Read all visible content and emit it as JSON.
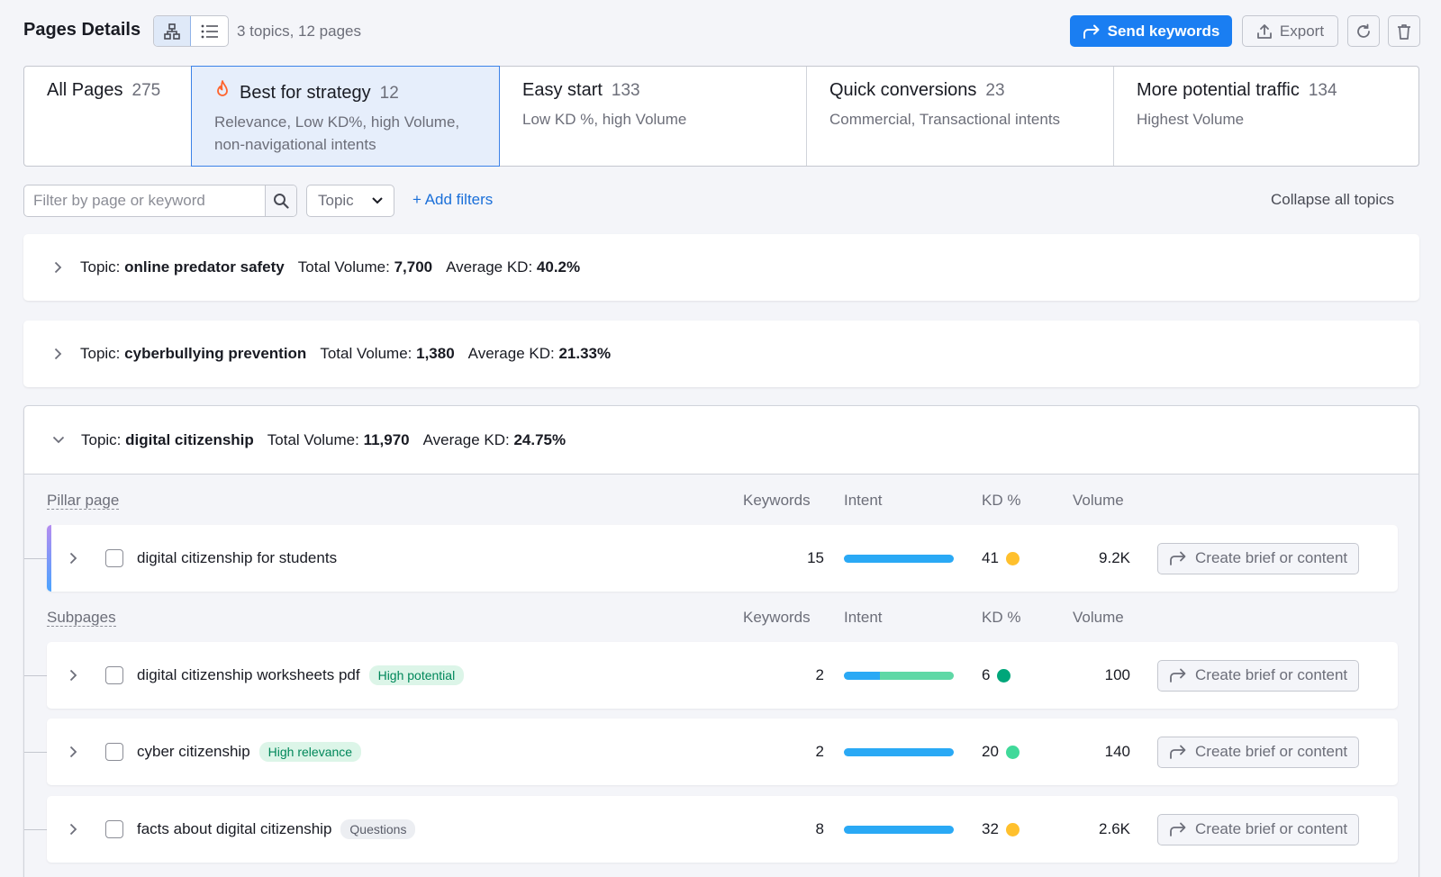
{
  "header": {
    "title": "Pages Details",
    "summary": "3 topics, 12 pages",
    "send_label": "Send keywords",
    "export_label": "Export"
  },
  "tabs": [
    {
      "title": "All Pages",
      "count": "275",
      "desc": ""
    },
    {
      "title": "Best for strategy",
      "count": "12",
      "desc": "Relevance, Low KD%, high Volume, non-navigational intents"
    },
    {
      "title": "Easy start",
      "count": "133",
      "desc": "Low KD %, high Volume"
    },
    {
      "title": "Quick conversions",
      "count": "23",
      "desc": "Commercial, Transactional intents"
    },
    {
      "title": "More potential traffic",
      "count": "134",
      "desc": "Highest Volume"
    }
  ],
  "filters": {
    "placeholder": "Filter by page or keyword",
    "topic_label": "Topic",
    "add_filters": "+ Add filters",
    "collapse": "Collapse all topics"
  },
  "topics": [
    {
      "prefix": "Topic:",
      "name": "online predator safety",
      "vol_label": "Total Volume:",
      "volume": "7,700",
      "kd_label": "Average KD:",
      "kd": "40.2%"
    },
    {
      "prefix": "Topic:",
      "name": "cyberbullying prevention",
      "vol_label": "Total Volume:",
      "volume": "1,380",
      "kd_label": "Average KD:",
      "kd": "21.33%"
    },
    {
      "prefix": "Topic:",
      "name": "digital citizenship",
      "vol_label": "Total Volume:",
      "volume": "11,970",
      "kd_label": "Average KD:",
      "kd": "24.75%"
    }
  ],
  "columns": {
    "keywords": "Keywords",
    "intent": "Intent",
    "kd": "KD %",
    "volume": "Volume"
  },
  "pillar": {
    "label": "Pillar page",
    "row": {
      "name": "digital citizenship for students",
      "keywords": "15",
      "kd": "41",
      "volume": "9.2K",
      "kd_color": "#ffc02d",
      "intent": [
        {
          "color": "#2aa9f5",
          "share": 1.0
        }
      ]
    }
  },
  "subpages": {
    "label": "Subpages",
    "rows": [
      {
        "name": "digital citizenship worksheets pdf",
        "badge": "High potential",
        "badge_type": "green",
        "keywords": "2",
        "kd": "6",
        "volume": "100",
        "kd_color": "#00a67a",
        "intent": [
          {
            "color": "#2aa9f5",
            "share": 0.33
          },
          {
            "color": "#5fd8a6",
            "share": 0.67
          }
        ]
      },
      {
        "name": "cyber citizenship",
        "badge": "High relevance",
        "badge_type": "green",
        "keywords": "2",
        "kd": "20",
        "volume": "140",
        "kd_color": "#40d99a",
        "intent": [
          {
            "color": "#2aa9f5",
            "share": 1.0
          }
        ]
      },
      {
        "name": "facts about digital citizenship",
        "badge": "Questions",
        "badge_type": "gray",
        "keywords": "8",
        "kd": "32",
        "volume": "2.6K",
        "kd_color": "#ffc02d",
        "intent": [
          {
            "color": "#2aa9f5",
            "share": 1.0
          }
        ]
      }
    ]
  },
  "row_action": "Create brief or content",
  "colors": {
    "primary": "#1a7ef2",
    "accent_tab": "#e6eefb",
    "flame": "#ff642d"
  }
}
